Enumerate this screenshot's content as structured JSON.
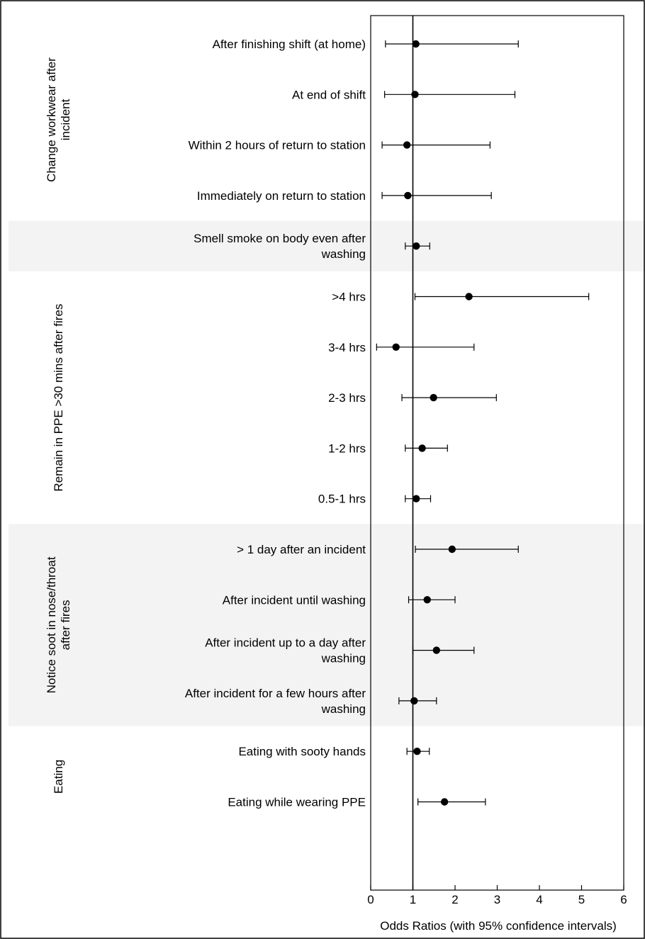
{
  "chart_data": {
    "type": "forest",
    "xlabel": "Odds Ratios (with 95% confidence intervals)",
    "xlim": [
      0,
      6
    ],
    "xticks": [
      "0",
      "1",
      "2",
      "3",
      "4",
      "5",
      "6"
    ],
    "reference_line": 1,
    "groups": [
      {
        "name": "Change workwear after incident",
        "shaded": false,
        "rows": [
          {
            "label": "After finishing shift (at home)",
            "or": 1.07,
            "lower": 0.35,
            "upper": 3.5
          },
          {
            "label": "At end of shift",
            "or": 1.05,
            "lower": 0.33,
            "upper": 3.42
          },
          {
            "label": "Within 2 hours of return to station",
            "or": 0.86,
            "lower": 0.27,
            "upper": 2.83
          },
          {
            "label": "Immediately on return to station",
            "or": 0.88,
            "lower": 0.27,
            "upper": 2.86
          }
        ]
      },
      {
        "name": "",
        "shaded": true,
        "rows": [
          {
            "label": "Smell smoke on body even after washing",
            "or": 1.08,
            "lower": 0.82,
            "upper": 1.4
          }
        ]
      },
      {
        "name": "Remain in PPE >30 mins after fires",
        "shaded": false,
        "rows": [
          {
            "label": ">4 hrs",
            "or": 2.33,
            "lower": 1.05,
            "upper": 5.17
          },
          {
            "label": "3-4 hrs",
            "or": 0.6,
            "lower": 0.14,
            "upper": 2.45
          },
          {
            "label": "2-3 hrs",
            "or": 1.49,
            "lower": 0.74,
            "upper": 2.98
          },
          {
            "label": "1-2 hrs",
            "or": 1.22,
            "lower": 0.82,
            "upper": 1.82
          },
          {
            "label": "0.5-1 hrs",
            "or": 1.08,
            "lower": 0.82,
            "upper": 1.42
          }
        ]
      },
      {
        "name": "Notice soot in nose/throat after fires",
        "shaded": true,
        "rows": [
          {
            "label": "> 1 day after an incident",
            "or": 1.93,
            "lower": 1.06,
            "upper": 3.5
          },
          {
            "label": "After incident until washing",
            "or": 1.34,
            "lower": 0.9,
            "upper": 2.0
          },
          {
            "label": "After incident up to a day after washing",
            "or": 1.56,
            "lower": 1.0,
            "upper": 2.45
          },
          {
            "label": "After incident for a few hours after washing",
            "or": 1.03,
            "lower": 0.67,
            "upper": 1.56
          }
        ]
      },
      {
        "name": "Eating",
        "shaded": false,
        "rows": [
          {
            "label": "Eating with sooty hands",
            "or": 1.1,
            "lower": 0.86,
            "upper": 1.39
          },
          {
            "label": "Eating while wearing PPE",
            "or": 1.75,
            "lower": 1.12,
            "upper": 2.72
          }
        ]
      }
    ]
  },
  "colors": {
    "shade": "#f2f3f2",
    "ink": "#000000"
  }
}
